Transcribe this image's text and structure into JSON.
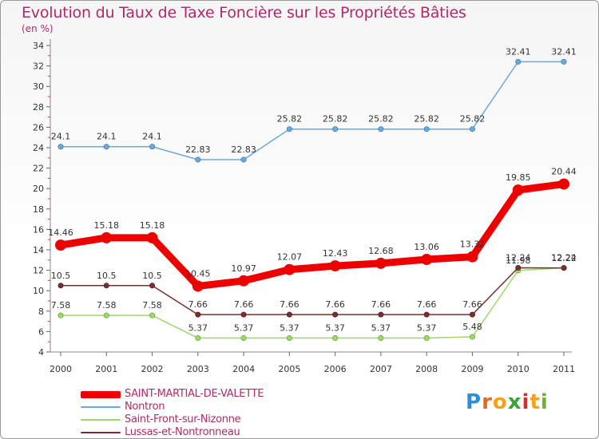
{
  "title": "Evolution du Taux de Taxe Foncière sur les Propriétés Bâties",
  "subtitle": "(en %)",
  "logo": {
    "text": "Proxiti",
    "letters": [
      "P",
      "r",
      "o",
      "x",
      "i",
      "t",
      "i"
    ],
    "colors": [
      "#2b8fd6",
      "#e8671a",
      "#f2a31b",
      "#3aa33a",
      "#d32f2f",
      "#f2a31b",
      "#6bb52e"
    ]
  },
  "chart_data": {
    "type": "line",
    "x": [
      "2000",
      "2001",
      "2002",
      "2003",
      "2004",
      "2005",
      "2006",
      "2007",
      "2008",
      "2009",
      "2010",
      "2011"
    ],
    "yticks": [
      4,
      6,
      8,
      10,
      12,
      14,
      16,
      18,
      20,
      22,
      24,
      26,
      28,
      30,
      32,
      34
    ],
    "ylim": [
      4,
      34
    ],
    "grid": false,
    "legend": "bottom-left",
    "series": [
      {
        "name": "SAINT-MARTIAL-DE-VALETTE",
        "color": "#ee0000",
        "width": 9,
        "marker": 7,
        "values": [
          14.46,
          15.18,
          15.18,
          10.45,
          10.97,
          12.07,
          12.43,
          12.68,
          13.06,
          13.32,
          19.85,
          20.44
        ],
        "labels": [
          "14.46",
          "15.18",
          "15.18",
          "10.45",
          "10.97",
          "12.07",
          "12.43",
          "12.68",
          "13.06",
          "13.32",
          "19.85",
          "20.44"
        ]
      },
      {
        "name": "Nontron",
        "color": "#6aa9de",
        "width": 1.5,
        "marker": 3.2,
        "values": [
          24.1,
          24.1,
          24.1,
          22.83,
          22.83,
          25.82,
          25.82,
          25.82,
          25.82,
          25.82,
          32.41,
          32.41
        ],
        "labels": [
          "24.1",
          "24.1",
          "24.1",
          "22.83",
          "22.83",
          "25.82",
          "25.82",
          "25.82",
          "25.82",
          "25.82",
          "32.41",
          "32.41"
        ]
      },
      {
        "name": "Saint-Front-sur-Nizonne",
        "color": "#9cd86a",
        "width": 1.5,
        "marker": 3.2,
        "values": [
          7.58,
          7.58,
          7.58,
          5.37,
          5.37,
          5.37,
          5.37,
          5.37,
          5.37,
          5.48,
          11.98,
          12.24
        ],
        "labels": [
          "7.58",
          "7.58",
          "7.58",
          "5.37",
          "5.37",
          "5.37",
          "5.37",
          "5.37",
          "5.37",
          "5.48",
          "11.98",
          "12.24"
        ]
      },
      {
        "name": "Lussas-et-Nontronneau",
        "color": "#7a2e2e",
        "width": 1.5,
        "marker": 3.2,
        "values": [
          10.5,
          10.5,
          10.5,
          7.66,
          7.66,
          7.66,
          7.66,
          7.66,
          7.66,
          7.66,
          12.24,
          12.22
        ],
        "labels": [
          "10.5",
          "10.5",
          "10.5",
          "7.66",
          "7.66",
          "7.66",
          "7.66",
          "7.66",
          "7.66",
          "7.66",
          "12.24",
          "12.22"
        ]
      }
    ]
  }
}
